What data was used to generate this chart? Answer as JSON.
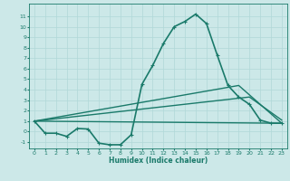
{
  "xlabel": "Humidex (Indice chaleur)",
  "xlim": [
    -0.5,
    23.5
  ],
  "ylim": [
    -1.6,
    12.2
  ],
  "yticks": [
    -1,
    0,
    1,
    2,
    3,
    4,
    5,
    6,
    7,
    8,
    9,
    10,
    11
  ],
  "xticks": [
    0,
    1,
    2,
    3,
    4,
    5,
    6,
    7,
    8,
    9,
    10,
    11,
    12,
    13,
    14,
    15,
    16,
    17,
    18,
    19,
    20,
    21,
    22,
    23
  ],
  "bg_color": "#cce8e8",
  "grid_color": "#b0d8d8",
  "line_color": "#1a7a6a",
  "curves": [
    {
      "x": [
        0,
        1,
        2,
        3,
        4,
        5,
        6,
        7,
        8,
        9,
        10,
        11,
        12,
        13,
        14,
        15,
        16,
        17,
        18,
        19,
        20,
        21,
        22,
        23
      ],
      "y": [
        1.0,
        -0.15,
        -0.15,
        -0.45,
        0.3,
        0.25,
        -1.1,
        -1.25,
        -1.25,
        -0.3,
        4.5,
        6.3,
        8.4,
        10.0,
        10.5,
        11.2,
        10.3,
        7.3,
        4.4,
        3.3,
        2.6,
        1.1,
        0.8,
        0.8
      ],
      "marker": "+",
      "lw": 1.2
    },
    {
      "x": [
        0,
        23
      ],
      "y": [
        1.0,
        0.8
      ],
      "marker": null,
      "lw": 1.0
    },
    {
      "x": [
        0,
        20,
        23
      ],
      "y": [
        1.0,
        3.3,
        1.1
      ],
      "marker": null,
      "lw": 1.0
    },
    {
      "x": [
        0,
        19,
        23
      ],
      "y": [
        1.0,
        4.4,
        0.8
      ],
      "marker": null,
      "lw": 1.0
    }
  ]
}
